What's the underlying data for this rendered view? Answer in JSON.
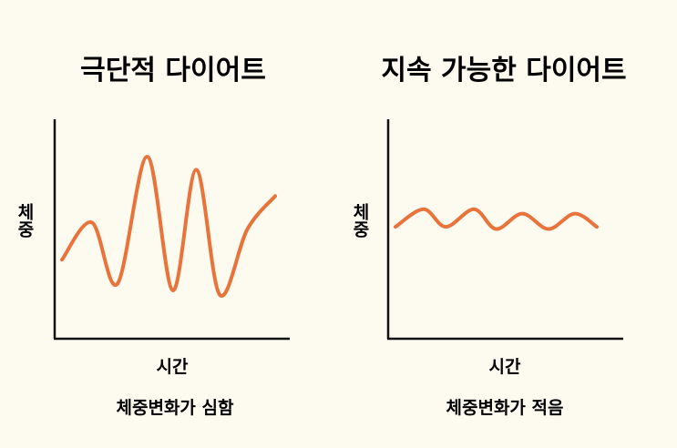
{
  "chart_data": [
    {
      "type": "line",
      "title": "극단적 다이어트",
      "xlabel": "시간",
      "ylabel": "체중",
      "caption": "체중변화가 심함",
      "grid": false,
      "ylim": [
        0,
        100
      ],
      "x": [
        0.0,
        0.14,
        0.26,
        0.4,
        0.52,
        0.63,
        0.74,
        0.87,
        1.0
      ],
      "series": [
        {
          "values": [
            36,
            53,
            25,
            83,
            22,
            77,
            20,
            50,
            65
          ],
          "color": "#e8743b"
        }
      ]
    },
    {
      "type": "line",
      "title": "지속 가능한 다이어트",
      "xlabel": "시간",
      "ylabel": "체중",
      "caption": "체중변화가 적음",
      "grid": false,
      "ylim": [
        0,
        100
      ],
      "x": [
        0.0,
        0.14,
        0.25,
        0.39,
        0.5,
        0.63,
        0.76,
        0.89,
        1.0
      ],
      "series": [
        {
          "values": [
            51,
            59,
            51,
            59,
            50,
            57,
            50,
            57,
            51
          ],
          "color": "#e8743b"
        }
      ]
    }
  ]
}
